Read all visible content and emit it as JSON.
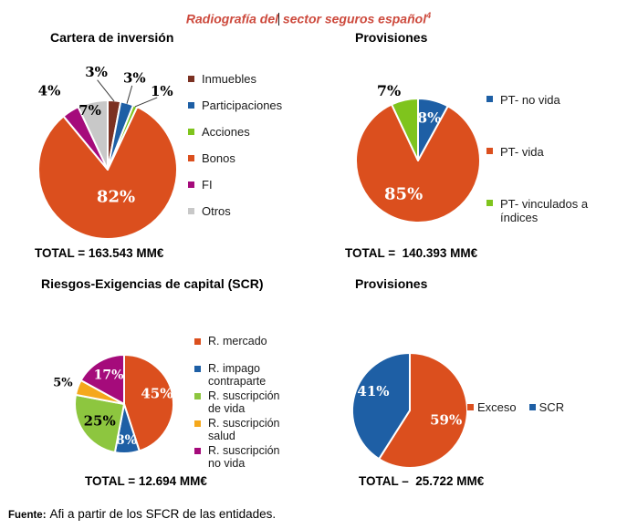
{
  "page_title": {
    "part1": "Radiografía del",
    "part2": " sector seguros español",
    "superscript": "4",
    "color": "#cd4a3d"
  },
  "footer": {
    "label": "Fuente:",
    "text": "Afi a partir de los SFCR de las entidades."
  },
  "chart_data": [
    {
      "type": "pie",
      "title": "Cartera de inversión",
      "total_label": "TOTAL = 163.543 MM€",
      "legend_position": "right",
      "slices": [
        {
          "name": "Inmuebles",
          "pct": "3%",
          "value": 3,
          "color": "#7b3122",
          "label": {
            "pos": "out",
            "color": "#000000",
            "r": 1.42,
            "shift": -12,
            "size": 15,
            "leader": true
          }
        },
        {
          "name": "Participaciones",
          "pct": "3%",
          "value": 3,
          "color": "#1e5fa5",
          "label": {
            "pos": "out",
            "color": "#000000",
            "r": 1.38,
            "shift": 0,
            "size": 15,
            "leader": true
          }
        },
        {
          "name": "Acciones",
          "pct": "1%",
          "value": 1,
          "color": "#7fc41d",
          "label": {
            "pos": "out",
            "color": "#000000",
            "r": 1.38,
            "shift": 11,
            "size": 15,
            "leader": true
          }
        },
        {
          "name": "Bonos",
          "pct": "82%",
          "value": 82,
          "color": "#db4f1e",
          "label": {
            "pos": "in",
            "color": "#ffffff",
            "r": 0.4,
            "shift": -10,
            "size": 18,
            "leader": false
          }
        },
        {
          "name": "FI",
          "pct": "4%",
          "value": 4,
          "color": "#a50b7b",
          "label": {
            "pos": "out",
            "color": "#000000",
            "r": 1.42,
            "shift": -4,
            "size": 15,
            "leader": false
          }
        },
        {
          "name": "Otros",
          "pct": "7%",
          "value": 7,
          "color": "#c8c8c8",
          "label": {
            "pos": "in",
            "color": "#000000",
            "r": 0.9,
            "shift": -4,
            "size": 15,
            "leader": false
          }
        }
      ]
    },
    {
      "type": "pie",
      "title": "Provisiones",
      "total_label": "TOTAL =  140.393 MM€",
      "legend_position": "right",
      "slices": [
        {
          "name": "PT- no vida",
          "pct": "8%",
          "value": 8,
          "color": "#1e5fa5",
          "label": {
            "pos": "in",
            "color": "#ffffff",
            "r": 0.72,
            "shift": 0,
            "size": 16,
            "leader": false
          }
        },
        {
          "name": "PT- vida",
          "pct": "85%",
          "value": 85,
          "color": "#db4f1e",
          "label": {
            "pos": "in",
            "color": "#ffffff",
            "r": 0.58,
            "shift": 22,
            "size": 18,
            "leader": false
          }
        },
        {
          "name": "PT- vinculados a índices",
          "pct": "7%",
          "value": 7,
          "color": "#7fc41d",
          "label": {
            "pos": "out",
            "color": "#000000",
            "r": 1.22,
            "shift": -10,
            "size": 16,
            "leader": false
          }
        }
      ]
    },
    {
      "type": "pie",
      "title": "Riesgos-Exigencias de capital (SCR)",
      "total_label": "TOTAL = 12.694 MM€",
      "legend_position": "right",
      "slices": [
        {
          "name": "R. mercado",
          "pct": "45%",
          "value": 45,
          "color": "#db4f1e",
          "label": {
            "pos": "in",
            "color": "#ffffff",
            "r": 0.7,
            "shift": -9,
            "size": 15,
            "leader": false
          }
        },
        {
          "name": "R. impago contraparte",
          "pct": "8%",
          "value": 8,
          "color": "#1e5fa5",
          "label": {
            "pos": "in",
            "color": "#ffffff",
            "r": 0.72,
            "shift": 0,
            "size": 14,
            "leader": false
          }
        },
        {
          "name": "R. suscripción de vida",
          "pct": "25%",
          "value": 25,
          "color": "#8dc63f",
          "label": {
            "pos": "in",
            "color": "#000000",
            "r": 0.6,
            "shift": 0,
            "size": 15,
            "leader": false
          }
        },
        {
          "name": "R. suscripción salud",
          "pct": "5%",
          "value": 5,
          "color": "#f5a81c",
          "label": {
            "pos": "out",
            "color": "#000000",
            "r": 1.32,
            "shift": 0,
            "size": 13,
            "leader": false
          }
        },
        {
          "name": "R. suscripción no vida",
          "pct": "17%",
          "value": 17,
          "color": "#a50b7b",
          "label": {
            "pos": "in",
            "color": "#ffffff",
            "r": 0.68,
            "shift": 3,
            "size": 14,
            "leader": false
          }
        }
      ]
    },
    {
      "type": "pie",
      "title": "Provisiones",
      "total_label": "TOTAL –  25.722 MM€",
      "legend_position": "right-horizontal",
      "slices": [
        {
          "name": "Exceso",
          "pct": "59%",
          "value": 59,
          "color": "#db4f1e",
          "label": {
            "pos": "in",
            "color": "#ffffff",
            "r": 0.65,
            "shift": -2,
            "size": 15,
            "leader": false
          }
        },
        {
          "name": "SCR",
          "pct": "41%",
          "value": 41,
          "color": "#1e5fa5",
          "label": {
            "pos": "in",
            "color": "#ffffff",
            "r": 0.72,
            "shift": 12,
            "size": 15,
            "leader": false
          }
        }
      ]
    }
  ]
}
